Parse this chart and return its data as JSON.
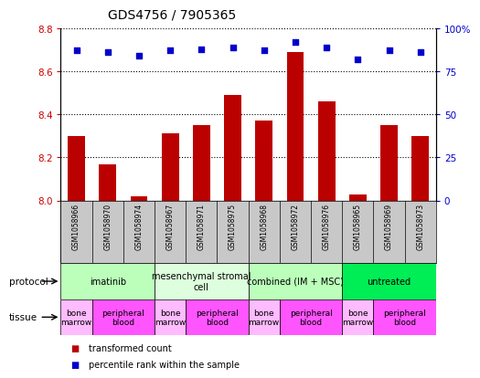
{
  "title": "GDS4756 / 7905365",
  "samples": [
    "GSM1058966",
    "GSM1058970",
    "GSM1058974",
    "GSM1058967",
    "GSM1058971",
    "GSM1058975",
    "GSM1058968",
    "GSM1058972",
    "GSM1058976",
    "GSM1058965",
    "GSM1058969",
    "GSM1058973"
  ],
  "bar_values": [
    8.3,
    8.17,
    8.02,
    8.31,
    8.35,
    8.49,
    8.37,
    8.69,
    8.46,
    8.03,
    8.35,
    8.3
  ],
  "dot_values": [
    87,
    86,
    84,
    87,
    88,
    89,
    87,
    92,
    89,
    82,
    87,
    86
  ],
  "ylim_left": [
    8.0,
    8.8
  ],
  "ylim_right": [
    0,
    100
  ],
  "yticks_left": [
    8.0,
    8.2,
    8.4,
    8.6,
    8.8
  ],
  "yticks_right": [
    0,
    25,
    50,
    75,
    100
  ],
  "bar_color": "#bb0000",
  "dot_color": "#0000cc",
  "legend_bar": "transformed count",
  "legend_dot": "percentile rank within the sample",
  "protocols": [
    {
      "label": "imatinib",
      "start": 0,
      "end": 3,
      "color": "#bbffbb"
    },
    {
      "label": "mesenchymal stromal\ncell",
      "start": 3,
      "end": 6,
      "color": "#ddffdd"
    },
    {
      "label": "combined (IM + MSC)",
      "start": 6,
      "end": 9,
      "color": "#bbffbb"
    },
    {
      "label": "untreated",
      "start": 9,
      "end": 12,
      "color": "#00ee55"
    }
  ],
  "tissues": [
    {
      "label": "bone\nmarrow",
      "start": 0,
      "end": 1,
      "color": "#ffbbff"
    },
    {
      "label": "peripheral\nblood",
      "start": 1,
      "end": 3,
      "color": "#ff55ff"
    },
    {
      "label": "bone\nmarrow",
      "start": 3,
      "end": 4,
      "color": "#ffbbff"
    },
    {
      "label": "peripheral\nblood",
      "start": 4,
      "end": 6,
      "color": "#ff55ff"
    },
    {
      "label": "bone\nmarrow",
      "start": 6,
      "end": 7,
      "color": "#ffbbff"
    },
    {
      "label": "peripheral\nblood",
      "start": 7,
      "end": 9,
      "color": "#ff55ff"
    },
    {
      "label": "bone\nmarrow",
      "start": 9,
      "end": 10,
      "color": "#ffbbff"
    },
    {
      "label": "peripheral\nblood",
      "start": 10,
      "end": 12,
      "color": "#ff55ff"
    }
  ],
  "protocol_label": "protocol",
  "tissue_label": "tissue",
  "background_color": "#ffffff",
  "sample_bg_color": "#c8c8c8"
}
